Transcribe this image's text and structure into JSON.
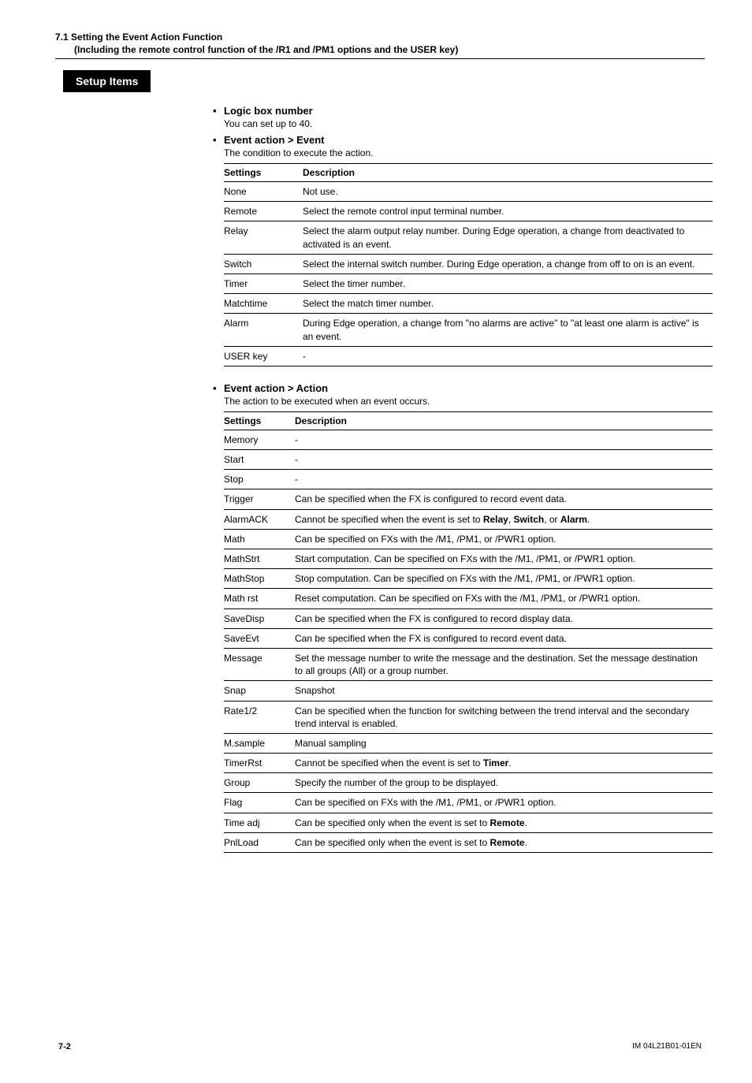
{
  "header": {
    "line1": "7.1  Setting the Event Action Function",
    "line2": "(Including the remote control function of the /R1 and /PM1 options and the USER key)"
  },
  "setup_label": "Setup Items",
  "section1": {
    "title": "Logic box number",
    "sub": "You can set up to 40."
  },
  "section2": {
    "title": "Event action > Event",
    "sub": "The condition to execute the action.",
    "th1": "Settings",
    "th2": "Description",
    "rows": [
      {
        "s": "None",
        "d": "Not use."
      },
      {
        "s": "Remote",
        "d": "Select the remote control input terminal number."
      },
      {
        "s": "Relay",
        "d": "Select the alarm output relay number. During Edge operation, a change from deactivated to activated is an event."
      },
      {
        "s": "Switch",
        "d": "Select the internal switch number. During Edge operation, a change from off to on is an event."
      },
      {
        "s": "Timer",
        "d": "Select the timer number."
      },
      {
        "s": "Matchtime",
        "d": "Select the match timer number."
      },
      {
        "s": "Alarm",
        "d": "During Edge operation, a change from \"no alarms are active\" to \"at least one alarm is active\" is an event."
      },
      {
        "s": "USER key",
        "d": "-"
      }
    ]
  },
  "section3": {
    "title": "Event action > Action",
    "sub": "The action to be executed when an event occurs.",
    "th1": "Settings",
    "th2": "Description",
    "rows": [
      {
        "s": "Memory",
        "d": "-"
      },
      {
        "s": "Start",
        "d": "-"
      },
      {
        "s": "Stop",
        "d": "-"
      },
      {
        "s": "Trigger",
        "d": "Can be specified when the FX is configured to record event data."
      },
      {
        "s": "AlarmACK",
        "d": "Cannot be specified when the event is set to <b>Relay</b>, <b>Switch</b>, or <b>Alarm</b>."
      },
      {
        "s": "Math",
        "d": "Can be specified on FXs with the /M1, /PM1, or /PWR1 option."
      },
      {
        "s": "MathStrt",
        "d": "Start computation. Can be specified on FXs with the /M1, /PM1, or /PWR1 option."
      },
      {
        "s": "MathStop",
        "d": "Stop computation. Can be specified on FXs with the /M1, /PM1, or /PWR1 option."
      },
      {
        "s": "Math rst",
        "d": "Reset computation. Can be specified on FXs with the /M1, /PM1, or /PWR1 option."
      },
      {
        "s": "SaveDisp",
        "d": "Can be specified when the FX is configured to record display data."
      },
      {
        "s": "SaveEvt",
        "d": "Can be specified when the FX is configured to record event data."
      },
      {
        "s": "Message",
        "d": "Set the message number to write the message and the destination. Set the message destination to all groups (All) or a group number."
      },
      {
        "s": "Snap",
        "d": "Snapshot"
      },
      {
        "s": "Rate1/2",
        "d": "Can be specified when the function for switching between the trend interval and the secondary trend interval is enabled."
      },
      {
        "s": "M.sample",
        "d": "Manual sampling"
      },
      {
        "s": "TimerRst",
        "d": "Cannot be specified when the event is set to <b>Timer</b>."
      },
      {
        "s": "Group",
        "d": "Specify the number of the group to be displayed."
      },
      {
        "s": "Flag",
        "d": "Can be specified on FXs with the /M1, /PM1, or /PWR1 option."
      },
      {
        "s": "Time adj",
        "d": "Can be specified only when the event is set to <b>Remote</b>."
      },
      {
        "s": "PnlLoad",
        "d": "Can be specified only when the event is set to <b>Remote</b>."
      }
    ]
  },
  "footer": {
    "left": "7-2",
    "right": "IM 04L21B01-01EN"
  }
}
